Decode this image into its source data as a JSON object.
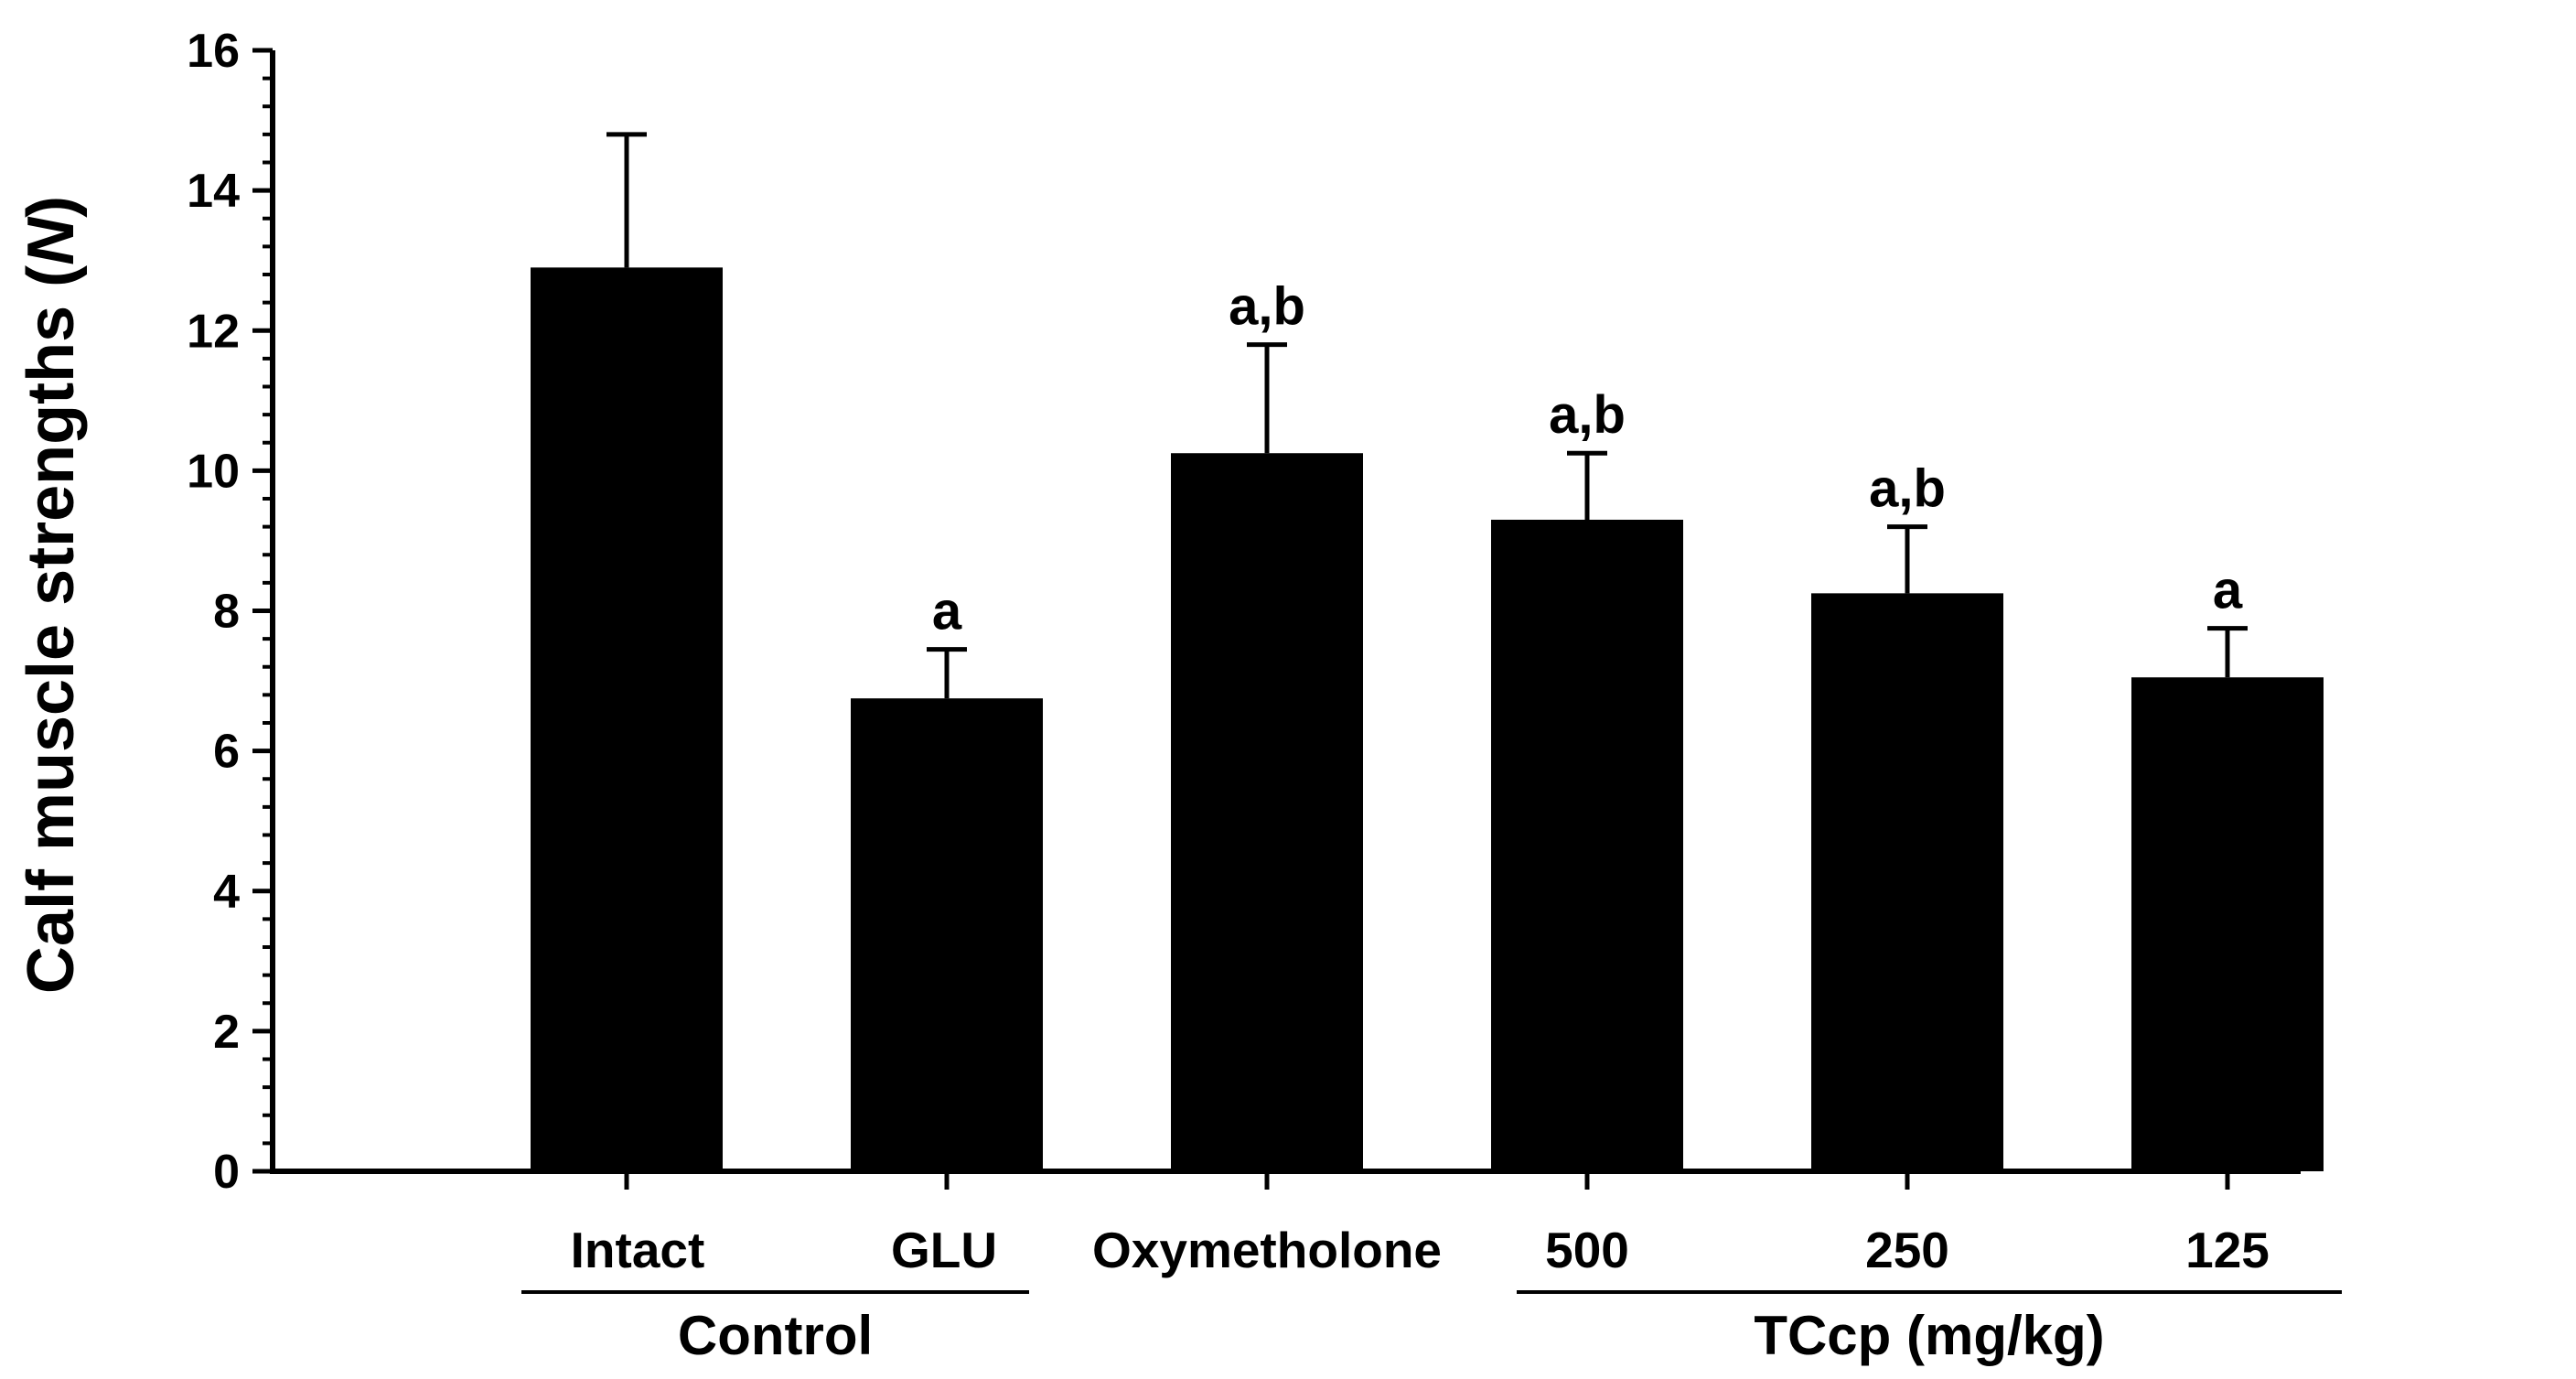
{
  "chart_data": {
    "type": "bar",
    "ylabel_main": "Calf muscle strengths (",
    "ylabel_unit": "N",
    "ylabel_close": ")",
    "ylim": [
      0,
      16
    ],
    "yticks": [
      0,
      2,
      4,
      6,
      8,
      10,
      12,
      14,
      16
    ],
    "ytick_labels": [
      "0",
      "2",
      "4",
      "6",
      "8",
      "10",
      "12",
      "14",
      "16"
    ],
    "categories": [
      "Intact",
      "GLU",
      "Oxymetholone",
      "500",
      "250",
      "125"
    ],
    "values": [
      12.9,
      6.75,
      10.25,
      9.3,
      8.25,
      7.05
    ],
    "errors": [
      1.9,
      0.7,
      1.55,
      0.95,
      0.95,
      0.7
    ],
    "annotations": [
      "",
      "a",
      "a,b",
      "a,b",
      "a,b",
      "a"
    ],
    "groups": [
      {
        "label": "Control",
        "start": 0,
        "end": 1
      },
      {
        "label": "TCcp (mg/kg)",
        "start": 3,
        "end": 5
      }
    ],
    "bar_color": "#000000",
    "grid": false
  }
}
